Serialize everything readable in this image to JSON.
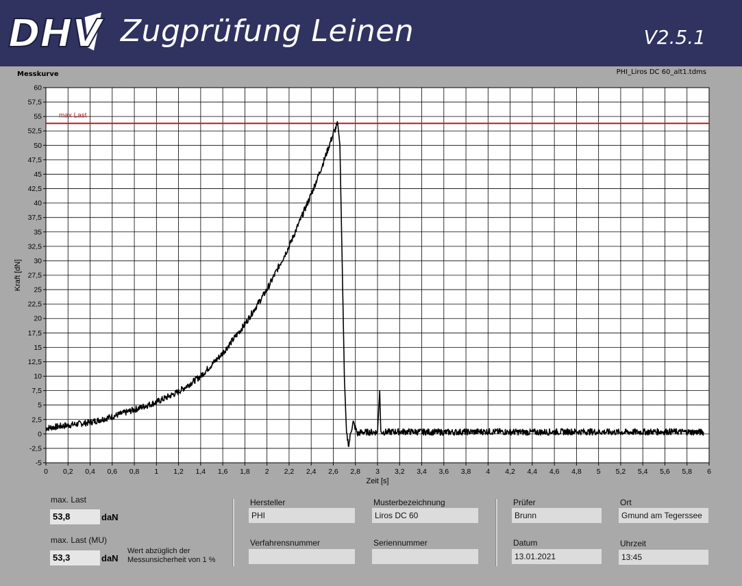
{
  "header": {
    "logo_text": "DHV",
    "title": "Zugprüfung Leinen",
    "version": "V2.5.1"
  },
  "chart_panel": {
    "label": "Messkurve",
    "file_name": "PHI_Liros DC 60_alt1.tdms"
  },
  "chart_data": {
    "type": "line",
    "xlabel": "Zeit [s]",
    "ylabel": "Kraft [dN]",
    "xlim": [
      0,
      6
    ],
    "ylim": [
      -5,
      60
    ],
    "x_ticks": [
      "0",
      "0,2",
      "0,4",
      "0,6",
      "0,8",
      "1",
      "1,2",
      "1,4",
      "1,6",
      "1,8",
      "2",
      "2,2",
      "2,4",
      "2,6",
      "2,8",
      "3",
      "3,2",
      "3,4",
      "3,6",
      "3,8",
      "4",
      "4,2",
      "4,4",
      "4,6",
      "4,8",
      "5",
      "5,2",
      "5,4",
      "5,6",
      "5,8",
      "6"
    ],
    "y_ticks": [
      "-5",
      "-2,5",
      "0",
      "2,5",
      "5",
      "7,5",
      "10",
      "12,5",
      "15",
      "17,5",
      "20",
      "22,5",
      "25",
      "27,5",
      "30",
      "32,5",
      "35",
      "37,5",
      "40",
      "42,5",
      "45",
      "47,5",
      "50",
      "52,5",
      "55",
      "57,5",
      "60"
    ],
    "grid": true,
    "max_line": {
      "label": "max Last",
      "value": 53.8,
      "color": "#c0161b"
    },
    "series": [
      {
        "color": "#000000",
        "points": [
          [
            0,
            1.0
          ],
          [
            0.2,
            1.5
          ],
          [
            0.4,
            2.0
          ],
          [
            0.6,
            3.0
          ],
          [
            0.8,
            4.2
          ],
          [
            1.0,
            5.5
          ],
          [
            1.2,
            7.3
          ],
          [
            1.4,
            10.0
          ],
          [
            1.6,
            14.0
          ],
          [
            1.8,
            19.0
          ],
          [
            2.0,
            25.0
          ],
          [
            2.2,
            32.5
          ],
          [
            2.4,
            41.5
          ],
          [
            2.5,
            46.5
          ],
          [
            2.6,
            52.0
          ],
          [
            2.64,
            53.8
          ],
          [
            2.66,
            50.0
          ],
          [
            2.68,
            30.0
          ],
          [
            2.7,
            10.0
          ],
          [
            2.72,
            0.0
          ],
          [
            2.74,
            -2.0
          ],
          [
            2.76,
            0.5
          ],
          [
            2.78,
            2.0
          ],
          [
            2.8,
            1.0
          ],
          [
            2.82,
            0.0
          ],
          [
            2.85,
            0.3
          ],
          [
            3.0,
            0.3
          ],
          [
            3.02,
            7.5
          ],
          [
            3.03,
            0.3
          ],
          [
            3.2,
            0.4
          ],
          [
            3.6,
            0.3
          ],
          [
            4.0,
            0.4
          ],
          [
            4.4,
            0.3
          ],
          [
            4.8,
            0.4
          ],
          [
            5.2,
            0.3
          ],
          [
            5.6,
            0.4
          ],
          [
            5.95,
            0.3
          ]
        ]
      }
    ]
  },
  "results": {
    "max_last_label": "max. Last",
    "max_last_value": "53,8",
    "max_last_unit": "daN",
    "max_last_mu_label": "max. Last (MU)",
    "max_last_mu_value": "53,3",
    "max_last_mu_unit": "daN",
    "note": "Wert abzüglich der Messunsicherheit von 1 %"
  },
  "fields": {
    "hersteller_label": "Hersteller",
    "hersteller_value": "PHI",
    "muster_label": "Musterbezeichnung",
    "muster_value": "Liros DC 60",
    "verfahren_label": "Verfahrensnummer",
    "verfahren_value": "",
    "serien_label": "Seriennummer",
    "serien_value": "",
    "pruefer_label": "Prüfer",
    "pruefer_value": "Brunn",
    "ort_label": "Ort",
    "ort_value": "Gmund am Tegerssee",
    "datum_label": "Datum",
    "datum_value": "13.01.2021",
    "uhrzeit_label": "Uhrzeit",
    "uhrzeit_value": "13:45"
  },
  "colors": {
    "header_bg": "#303360",
    "panel_bg": "#a9a9a9",
    "plot_bg": "#ffffff",
    "max_line": "#c0161b"
  }
}
